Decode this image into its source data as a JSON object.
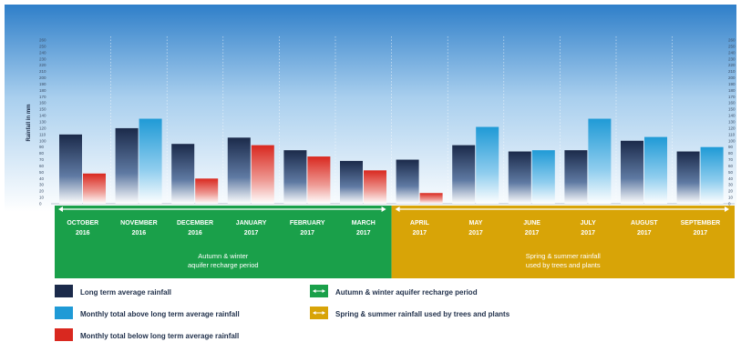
{
  "chart_data": {
    "type": "bar",
    "ylabel": "Rainfall in mm",
    "ylim": [
      0,
      260
    ],
    "yticks": [
      0,
      10,
      20,
      30,
      40,
      50,
      60,
      70,
      80,
      90,
      100,
      110,
      120,
      130,
      140,
      150,
      160,
      170,
      180,
      190,
      200,
      210,
      220,
      230,
      240,
      250,
      260
    ],
    "categories": [
      "OCTOBER 2016",
      "NOVEMBER 2016",
      "DECEMBER 2016",
      "JANUARY 2017",
      "FEBRUARY 2017",
      "MARCH 2017",
      "APRIL 2017",
      "MAY 2017",
      "JUNE 2017",
      "JULY 2017",
      "AUGUST 2017",
      "SEPTEMBER 2017"
    ],
    "category_lines": [
      [
        "OCTOBER",
        "2016"
      ],
      [
        "NOVEMBER",
        "2016"
      ],
      [
        "DECEMBER",
        "2016"
      ],
      [
        "JANUARY",
        "2017"
      ],
      [
        "FEBRUARY",
        "2017"
      ],
      [
        "MARCH",
        "2017"
      ],
      [
        "APRIL",
        "2017"
      ],
      [
        "MAY",
        "2017"
      ],
      [
        "JUNE",
        "2017"
      ],
      [
        "JULY",
        "2017"
      ],
      [
        "AUGUST",
        "2017"
      ],
      [
        "SEPTEMBER",
        "2017"
      ]
    ],
    "series": [
      {
        "name": "Long term average rainfall",
        "values": [
          110,
          120,
          95,
          105,
          85,
          68,
          70,
          93,
          83,
          85,
          100,
          83
        ]
      },
      {
        "name": "Monthly total",
        "values": [
          48,
          135,
          40,
          93,
          75,
          53,
          17,
          122,
          85,
          135,
          106,
          90
        ]
      }
    ],
    "periods": [
      {
        "lines": [
          "Autumn & winter",
          "aquifer recharge period"
        ],
        "months": [
          0,
          5
        ]
      },
      {
        "lines": [
          "Spring & summer rainfall",
          "used by trees and plants"
        ],
        "months": [
          6,
          11
        ]
      }
    ],
    "legend": [
      {
        "label": "Long term average rainfall",
        "kind": "long-term"
      },
      {
        "label": "Monthly total above long term average rainfall",
        "kind": "above"
      },
      {
        "label": "Monthly total below long term average rainfall",
        "kind": "below"
      },
      {
        "label": "Autumn & winter aquifer recharge period",
        "kind": "autumn"
      },
      {
        "label": "Spring & summer rainfall used by trees and plants",
        "kind": "spring"
      }
    ],
    "colors": {
      "long_term_top": "#1b2a4a",
      "above_top": "#1f9ad6",
      "below_top": "#d9281f",
      "autumn_band": "#1aa04a",
      "spring_band": "#d8a407",
      "sky_top": "#2f7fc9"
    },
    "legend_placement": "bottom",
    "grid": false
  }
}
